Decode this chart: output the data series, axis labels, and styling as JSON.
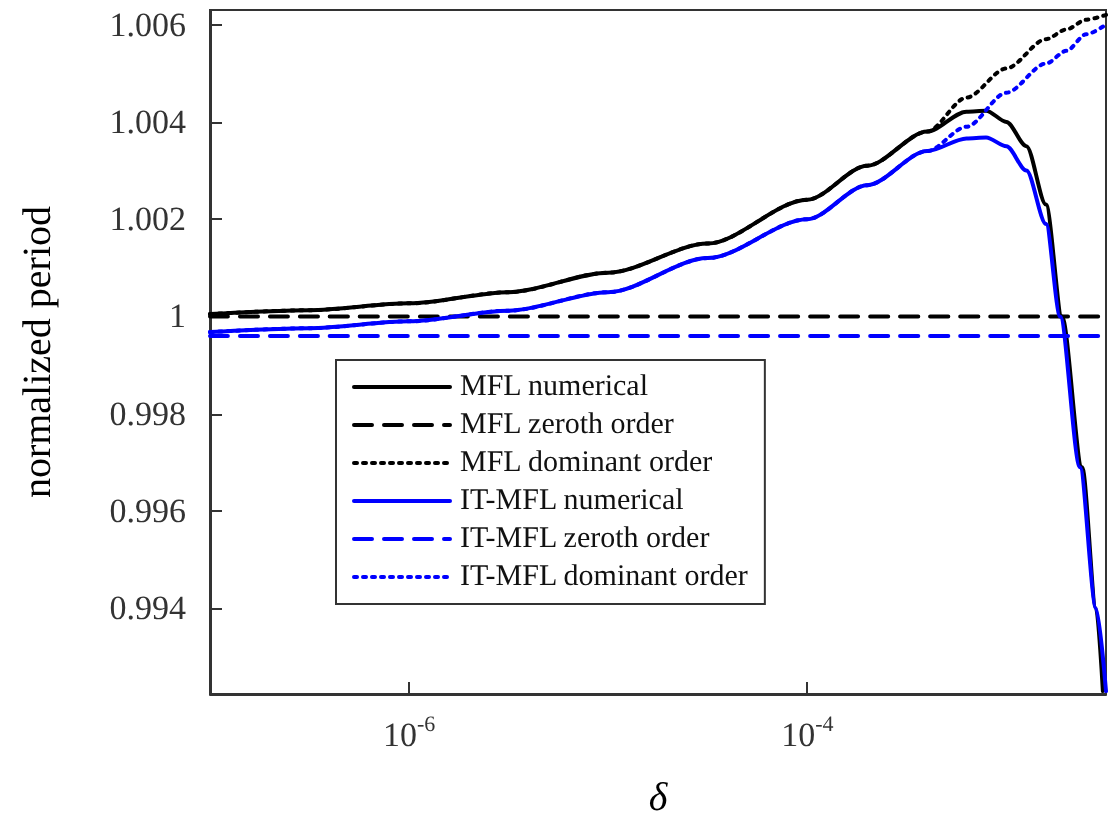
{
  "chart_data": {
    "type": "line",
    "xlabel": "δ",
    "ylabel": "normalized period",
    "log": "x",
    "xlim": [
      1e-07,
      0.003162
    ],
    "xticks": [
      {
        "value": 1e-06,
        "label": "10$^{-6}$"
      },
      {
        "value": 0.0001,
        "label": "10$^{-4}$"
      }
    ],
    "ylim": [
      0.99224,
      1.0063
    ],
    "yticks": [
      0.994,
      0.996,
      0.998,
      1,
      1.002,
      1.004,
      1.006
    ],
    "grid": false,
    "legend": "bottom",
    "marker": "none",
    "series": [
      {
        "name": "MFL numerical",
        "color": "#000000",
        "line_style": "solid",
        "x": [
          1e-07,
          3.16e-07,
          1e-06,
          3.16e-06,
          1e-05,
          3.16e-05,
          0.0001,
          0.0002,
          0.0004,
          0.00063,
          0.00079,
          0.001,
          0.00126,
          0.00158,
          0.0019,
          0.0024,
          0.00282,
          0.00305
        ],
        "values": [
          1.00005,
          1.00013,
          1.00027,
          1.0005,
          1.0009,
          1.0015,
          1.0024,
          1.0031,
          1.0038,
          1.00421,
          1.00423,
          1.004,
          1.0035,
          1.0023,
          1.0,
          0.9969,
          0.994,
          0.9923
        ]
      },
      {
        "name": "MFL zeroth order",
        "color": "#000000",
        "line_style": "dashed",
        "x": [
          1e-07,
          0.003162
        ],
        "values": [
          1.0,
          1.0
        ]
      },
      {
        "name": "MFL dominant order",
        "color": "#000000",
        "line_style": "dotted",
        "x": [
          1e-07,
          3.16e-07,
          1e-06,
          3.16e-06,
          1e-05,
          3.16e-05,
          0.0001,
          0.0002,
          0.0004,
          0.00063,
          0.001,
          0.00158,
          0.002,
          0.00251,
          0.003162
        ],
        "values": [
          1.00005,
          1.00013,
          1.00027,
          1.0005,
          1.0009,
          1.0015,
          1.0024,
          1.0031,
          1.0038,
          1.0045,
          1.0051,
          1.0057,
          1.0059,
          1.0061,
          1.0062
        ]
      },
      {
        "name": "IT-MFL numerical",
        "color": "#0000ff",
        "line_style": "solid",
        "x": [
          1e-07,
          3.16e-07,
          1e-06,
          3.16e-06,
          1e-05,
          3.16e-05,
          0.0001,
          0.0002,
          0.0004,
          0.00063,
          0.00079,
          0.001,
          0.00126,
          0.00158,
          0.00186,
          0.00234,
          0.00282,
          0.003162
        ],
        "values": [
          0.99968,
          0.99976,
          0.9999,
          1.00012,
          1.0005,
          1.0012,
          1.002,
          1.0027,
          1.0034,
          1.00366,
          1.00368,
          1.0035,
          1.003,
          1.0019,
          1.0,
          0.9969,
          0.994,
          0.9923
        ]
      },
      {
        "name": "IT-MFL zeroth order",
        "color": "#0000ff",
        "line_style": "dashed",
        "x": [
          1e-07,
          0.003162
        ],
        "values": [
          0.9996,
          0.9996
        ]
      },
      {
        "name": "IT-MFL dominant order",
        "color": "#0000ff",
        "line_style": "dotted",
        "x": [
          1e-07,
          3.16e-07,
          1e-06,
          3.16e-06,
          1e-05,
          3.16e-05,
          0.0001,
          0.0002,
          0.0004,
          0.00063,
          0.001,
          0.00158,
          0.002,
          0.00251,
          0.003162
        ],
        "values": [
          0.99968,
          0.99976,
          0.9999,
          1.00012,
          1.0005,
          1.0012,
          1.002,
          1.0027,
          1.0034,
          1.0039,
          1.0046,
          1.0052,
          1.00546,
          1.0058,
          1.006
        ]
      }
    ]
  }
}
